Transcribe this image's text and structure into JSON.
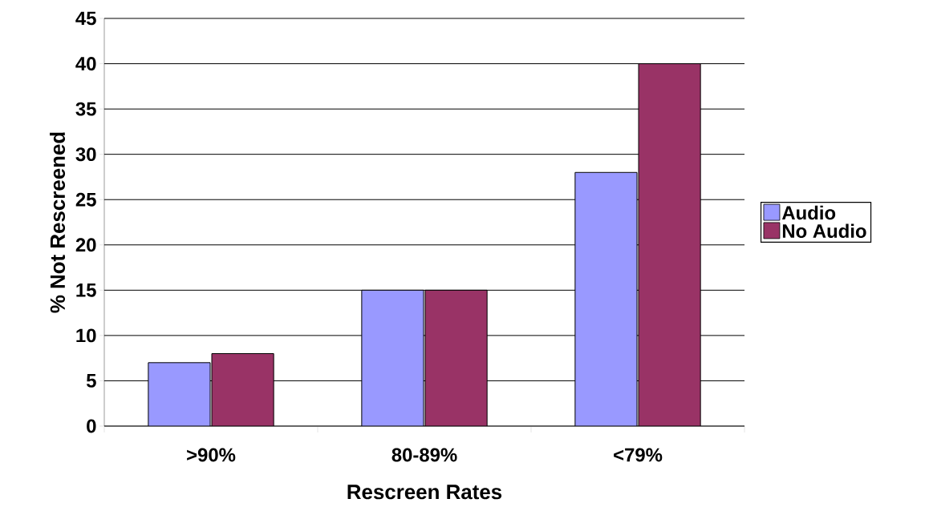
{
  "chart_data": {
    "type": "bar",
    "xlabel": "Rescreen Rates",
    "ylabel": "% Not Rescreened",
    "categories": [
      ">90%",
      "80-89%",
      "<79%"
    ],
    "series": [
      {
        "name": "Audio",
        "color": "#9999ff",
        "values": [
          7,
          15,
          28
        ]
      },
      {
        "name": "No Audio",
        "color": "#993366",
        "values": [
          8,
          15,
          40
        ]
      }
    ],
    "ylim": [
      0,
      45
    ],
    "yticks": [
      0,
      5,
      10,
      15,
      20,
      25,
      30,
      35,
      40,
      45
    ],
    "grid": "y",
    "legend": "right"
  }
}
